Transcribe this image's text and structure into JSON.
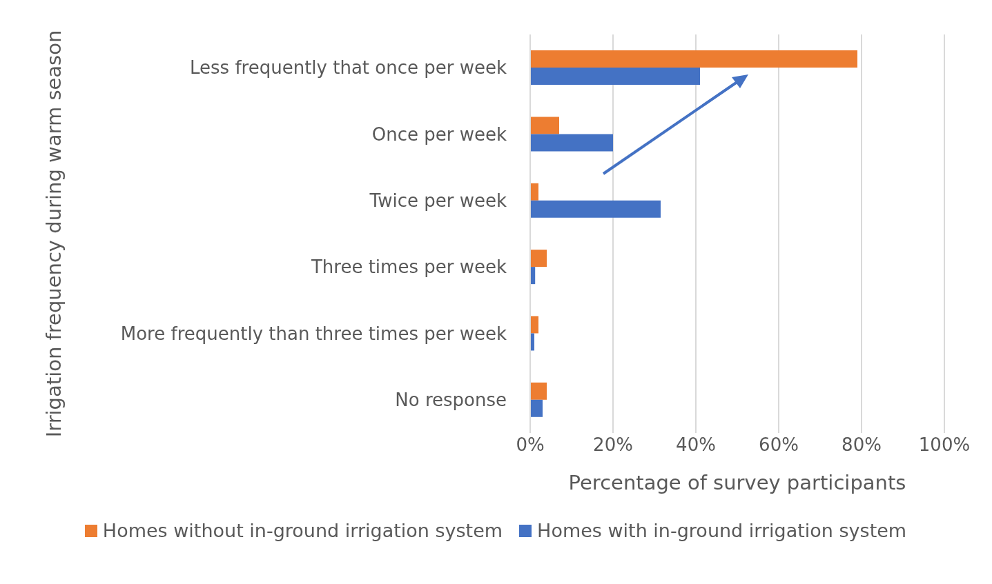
{
  "chart_data": {
    "type": "bar",
    "orientation": "horizontal",
    "xlabel": "Percentage of survey participants",
    "ylabel": "Irrigation frequency during warm season",
    "categories": [
      "Less frequently that once per week",
      "Once per week",
      "Twice per week",
      "Three times per week",
      "More frequently than three times per week",
      "No response"
    ],
    "series": [
      {
        "name": "Homes without in-ground irrigation system",
        "color": "#ed7d31",
        "values": [
          79,
          7,
          2,
          4,
          2,
          4
        ]
      },
      {
        "name": "Homes with in-ground irrigation system",
        "color": "#4472c4",
        "values": [
          41,
          20,
          31.5,
          1.2,
          1,
          3
        ]
      }
    ],
    "xlim": [
      0,
      100
    ],
    "xticks": [
      {
        "value": 0,
        "label": "0%"
      },
      {
        "value": 20,
        "label": "20%"
      },
      {
        "value": 40,
        "label": "40%"
      },
      {
        "value": 60,
        "label": "60%"
      },
      {
        "value": 80,
        "label": "80%"
      },
      {
        "value": 100,
        "label": "100%"
      }
    ],
    "grid": "x",
    "legend": "bottom"
  }
}
